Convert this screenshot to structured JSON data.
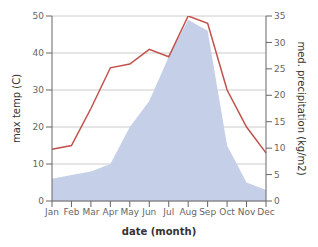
{
  "chart_data": {
    "type": "line",
    "xlabel": "date (month)",
    "ylabel": "max temp (C)",
    "y2label": "med. precipitation (kg/m2)",
    "categories": [
      "Jan",
      "Feb",
      "Mar",
      "Apr",
      "May",
      "Jun",
      "Jul",
      "Aug",
      "Sep",
      "Oct",
      "Nov",
      "Dec"
    ],
    "series": [
      {
        "type": "area",
        "color": "#c5d0e8",
        "values": [
          6,
          7,
          8,
          10,
          20,
          27,
          39,
          49,
          46,
          15,
          5,
          3
        ]
      },
      {
        "type": "line",
        "color": "#c0514b",
        "values": [
          14,
          15,
          25,
          36,
          37,
          41,
          39,
          50,
          48,
          30,
          20,
          13
        ]
      }
    ],
    "ylim": [
      0,
      50
    ],
    "yticks": [
      0,
      10,
      20,
      30,
      40,
      50
    ],
    "y2lim": [
      0,
      35
    ],
    "y2ticks": [
      0,
      5,
      10,
      15,
      20,
      25,
      30,
      35
    ],
    "grid": true
  }
}
